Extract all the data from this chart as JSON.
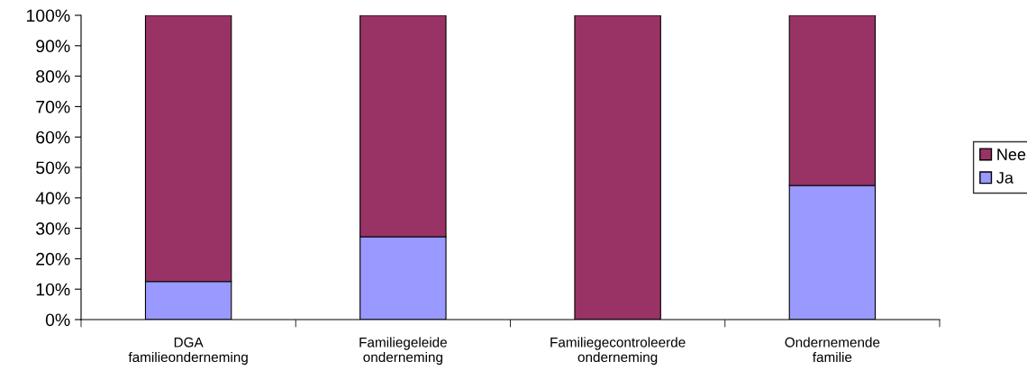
{
  "chart_data": {
    "type": "bar",
    "stacked": true,
    "categories": [
      "DGA\nfamilieonderneming",
      "Familiegeleide\nonderneming",
      "Familiegecontroleerde\nonderneming",
      "Ondernemende\nfamilie"
    ],
    "series": [
      {
        "name": "Ja",
        "color": "#9999ff",
        "values": [
          12.5,
          27.2,
          0,
          44.1
        ]
      },
      {
        "name": "Nee",
        "color": "#993366",
        "values": [
          87.5,
          72.8,
          100,
          55.9
        ]
      }
    ],
    "ylim": [
      0,
      100
    ],
    "yticks": [
      {
        "value": 0,
        "label": "0%"
      },
      {
        "value": 10,
        "label": "10%"
      },
      {
        "value": 20,
        "label": "20%"
      },
      {
        "value": 30,
        "label": "30%"
      },
      {
        "value": 40,
        "label": "40%"
      },
      {
        "value": 50,
        "label": "50%"
      },
      {
        "value": 60,
        "label": "60%"
      },
      {
        "value": 70,
        "label": "70%"
      },
      {
        "value": 80,
        "label": "80%"
      },
      {
        "value": 90,
        "label": "90%"
      },
      {
        "value": 100,
        "label": "100%"
      }
    ],
    "grid": false,
    "legend": "right"
  }
}
